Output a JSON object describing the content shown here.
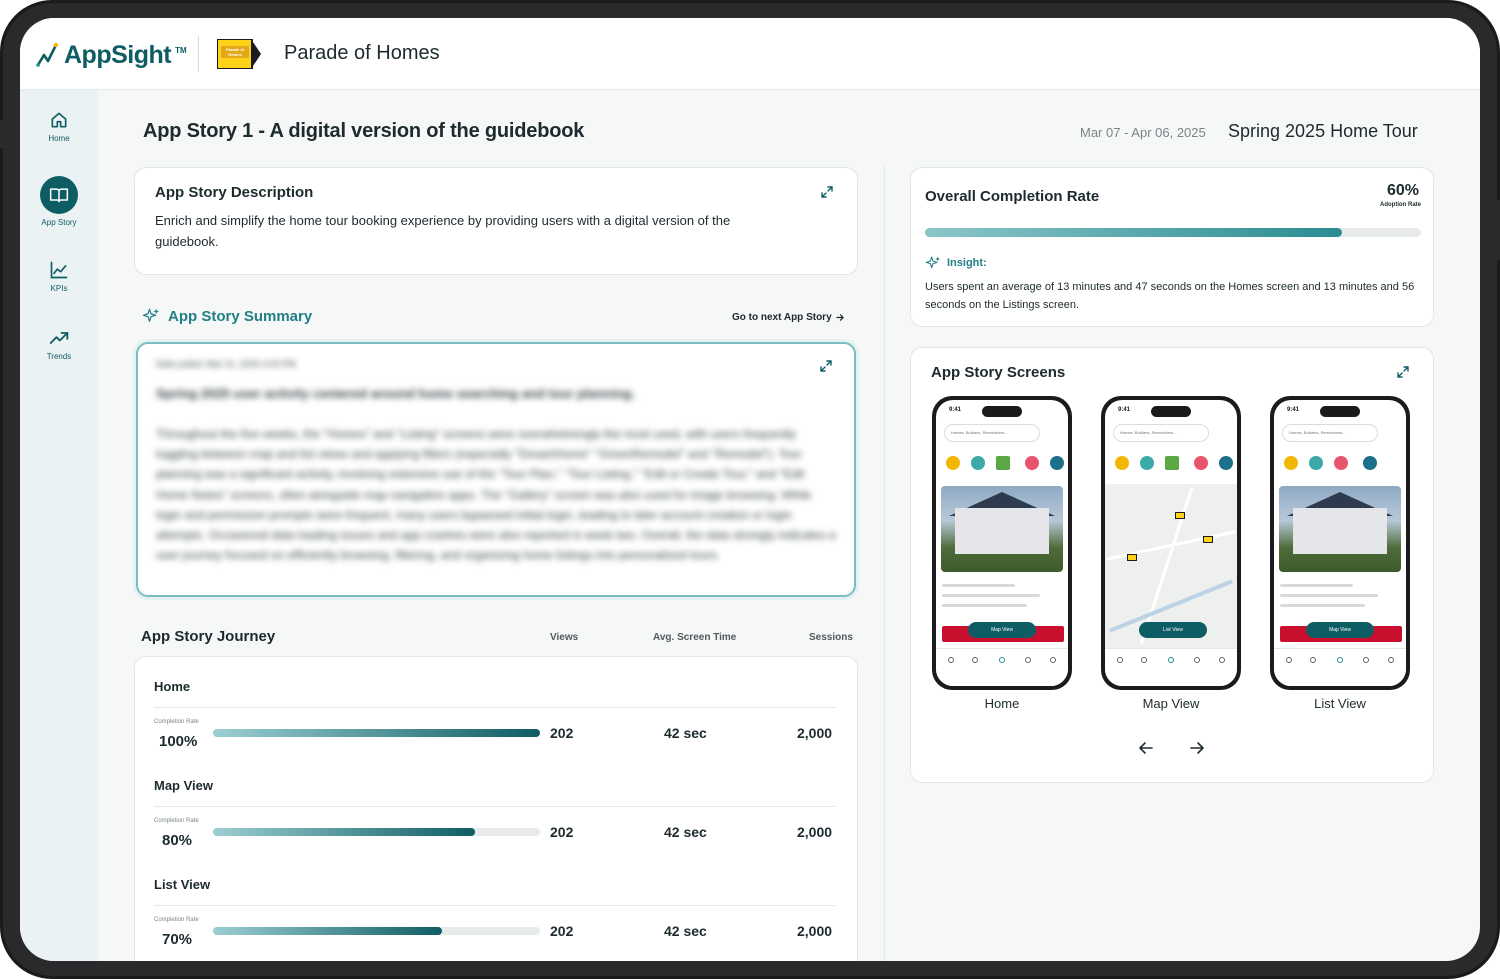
{
  "header": {
    "brand": "AppSight",
    "brand_tm": "TM",
    "partner_logo_text": "Parade of Homes",
    "app_name": "Parade of Homes"
  },
  "sidebar": {
    "items": [
      {
        "label": "Home",
        "icon": "home-icon",
        "active": false
      },
      {
        "label": "App Story",
        "icon": "book-icon",
        "active": true
      },
      {
        "label": "KPIs",
        "icon": "line-chart-icon",
        "active": false
      },
      {
        "label": "Trends",
        "icon": "trending-up-icon",
        "active": false
      }
    ]
  },
  "page": {
    "title": "App Story 1 - A digital version of the guidebook",
    "date_range": "Mar 07 - Apr 06, 2025",
    "tour_name": "Spring 2025 Home Tour"
  },
  "description": {
    "title": "App Story Description",
    "text": "Enrich and simplify the home tour booking experience by providing users with a digital version of the guidebook."
  },
  "summary": {
    "title": "App Story Summary",
    "next_link": "Go to next App Story",
    "date_pulled": "Date pulled: Mar 31, 2025 4:00 PM",
    "headline": "Spring 2025 user activity centered around home searching and tour planning.",
    "body": "Throughout the five weeks, the \"Homes\" and \"Listing\" screens were overwhelmingly the most used, with users frequently toggling between map and list views and applying filters (especially \"DreamHome\" \"GreenRemodel\" and \"Remodel\"). Tour planning was a significant activity, involving extensive use of the \"Tour Plan,\" \"Tour Listing,\" \"Edit or Create Tour,\" and \"Edit Home Notes\" screens, often alongside map navigation apps. The \"Gallery\" screen was also used for image browsing. While login and permission prompts were frequent, many users bypassed initial login, leading to later account creation or login attempts. Occasional data loading issues and app crashes were also reported in week two. Overall, the data strongly indicates a user journey focused on efficiently browsing, filtering, and organizing home listings into personalized tours."
  },
  "journey": {
    "title": "App Story Journey",
    "columns": {
      "views": "Views",
      "avg_time": "Avg. Screen Time",
      "sessions": "Sessions"
    },
    "completion_label": "Completion Rate",
    "rows": [
      {
        "name": "Home",
        "completion": "100%",
        "completion_value": 100,
        "views": "202",
        "avg_time": "42 sec",
        "sessions": "2,000"
      },
      {
        "name": "Map View",
        "completion": "80%",
        "completion_value": 80,
        "views": "202",
        "avg_time": "42 sec",
        "sessions": "2,000"
      },
      {
        "name": "List View",
        "completion": "70%",
        "completion_value": 70,
        "views": "202",
        "avg_time": "42 sec",
        "sessions": "2,000"
      }
    ]
  },
  "completion": {
    "title": "Overall Completion Rate",
    "value": "60%",
    "value_number": 60,
    "sub_label": "Adoption Rate",
    "insight_label": "Insight:",
    "insight_text": "Users spent an average of 13 minutes and 47 seconds on the Homes screen and 13 minutes and 56 seconds on the Listings screen."
  },
  "screens": {
    "title": "App Story Screens",
    "items": [
      {
        "caption": "Home",
        "time": "9:41",
        "search": "Homes, Builders, Remodelers...",
        "pill": "Map View"
      },
      {
        "caption": "Map View",
        "time": "9:41",
        "search": "Homes, Builders, Remodelers...",
        "pill": "List View"
      },
      {
        "caption": "List View",
        "time": "9:41",
        "search": "Homes, Builders, Remodelers...",
        "pill": "Map View"
      }
    ],
    "prev_icon": "arrow-left-icon",
    "next_icon": "arrow-right-icon"
  },
  "colors": {
    "brand": "#0f5d64",
    "accent": "#237f86",
    "sidebar_bg": "#eaf2f3"
  }
}
